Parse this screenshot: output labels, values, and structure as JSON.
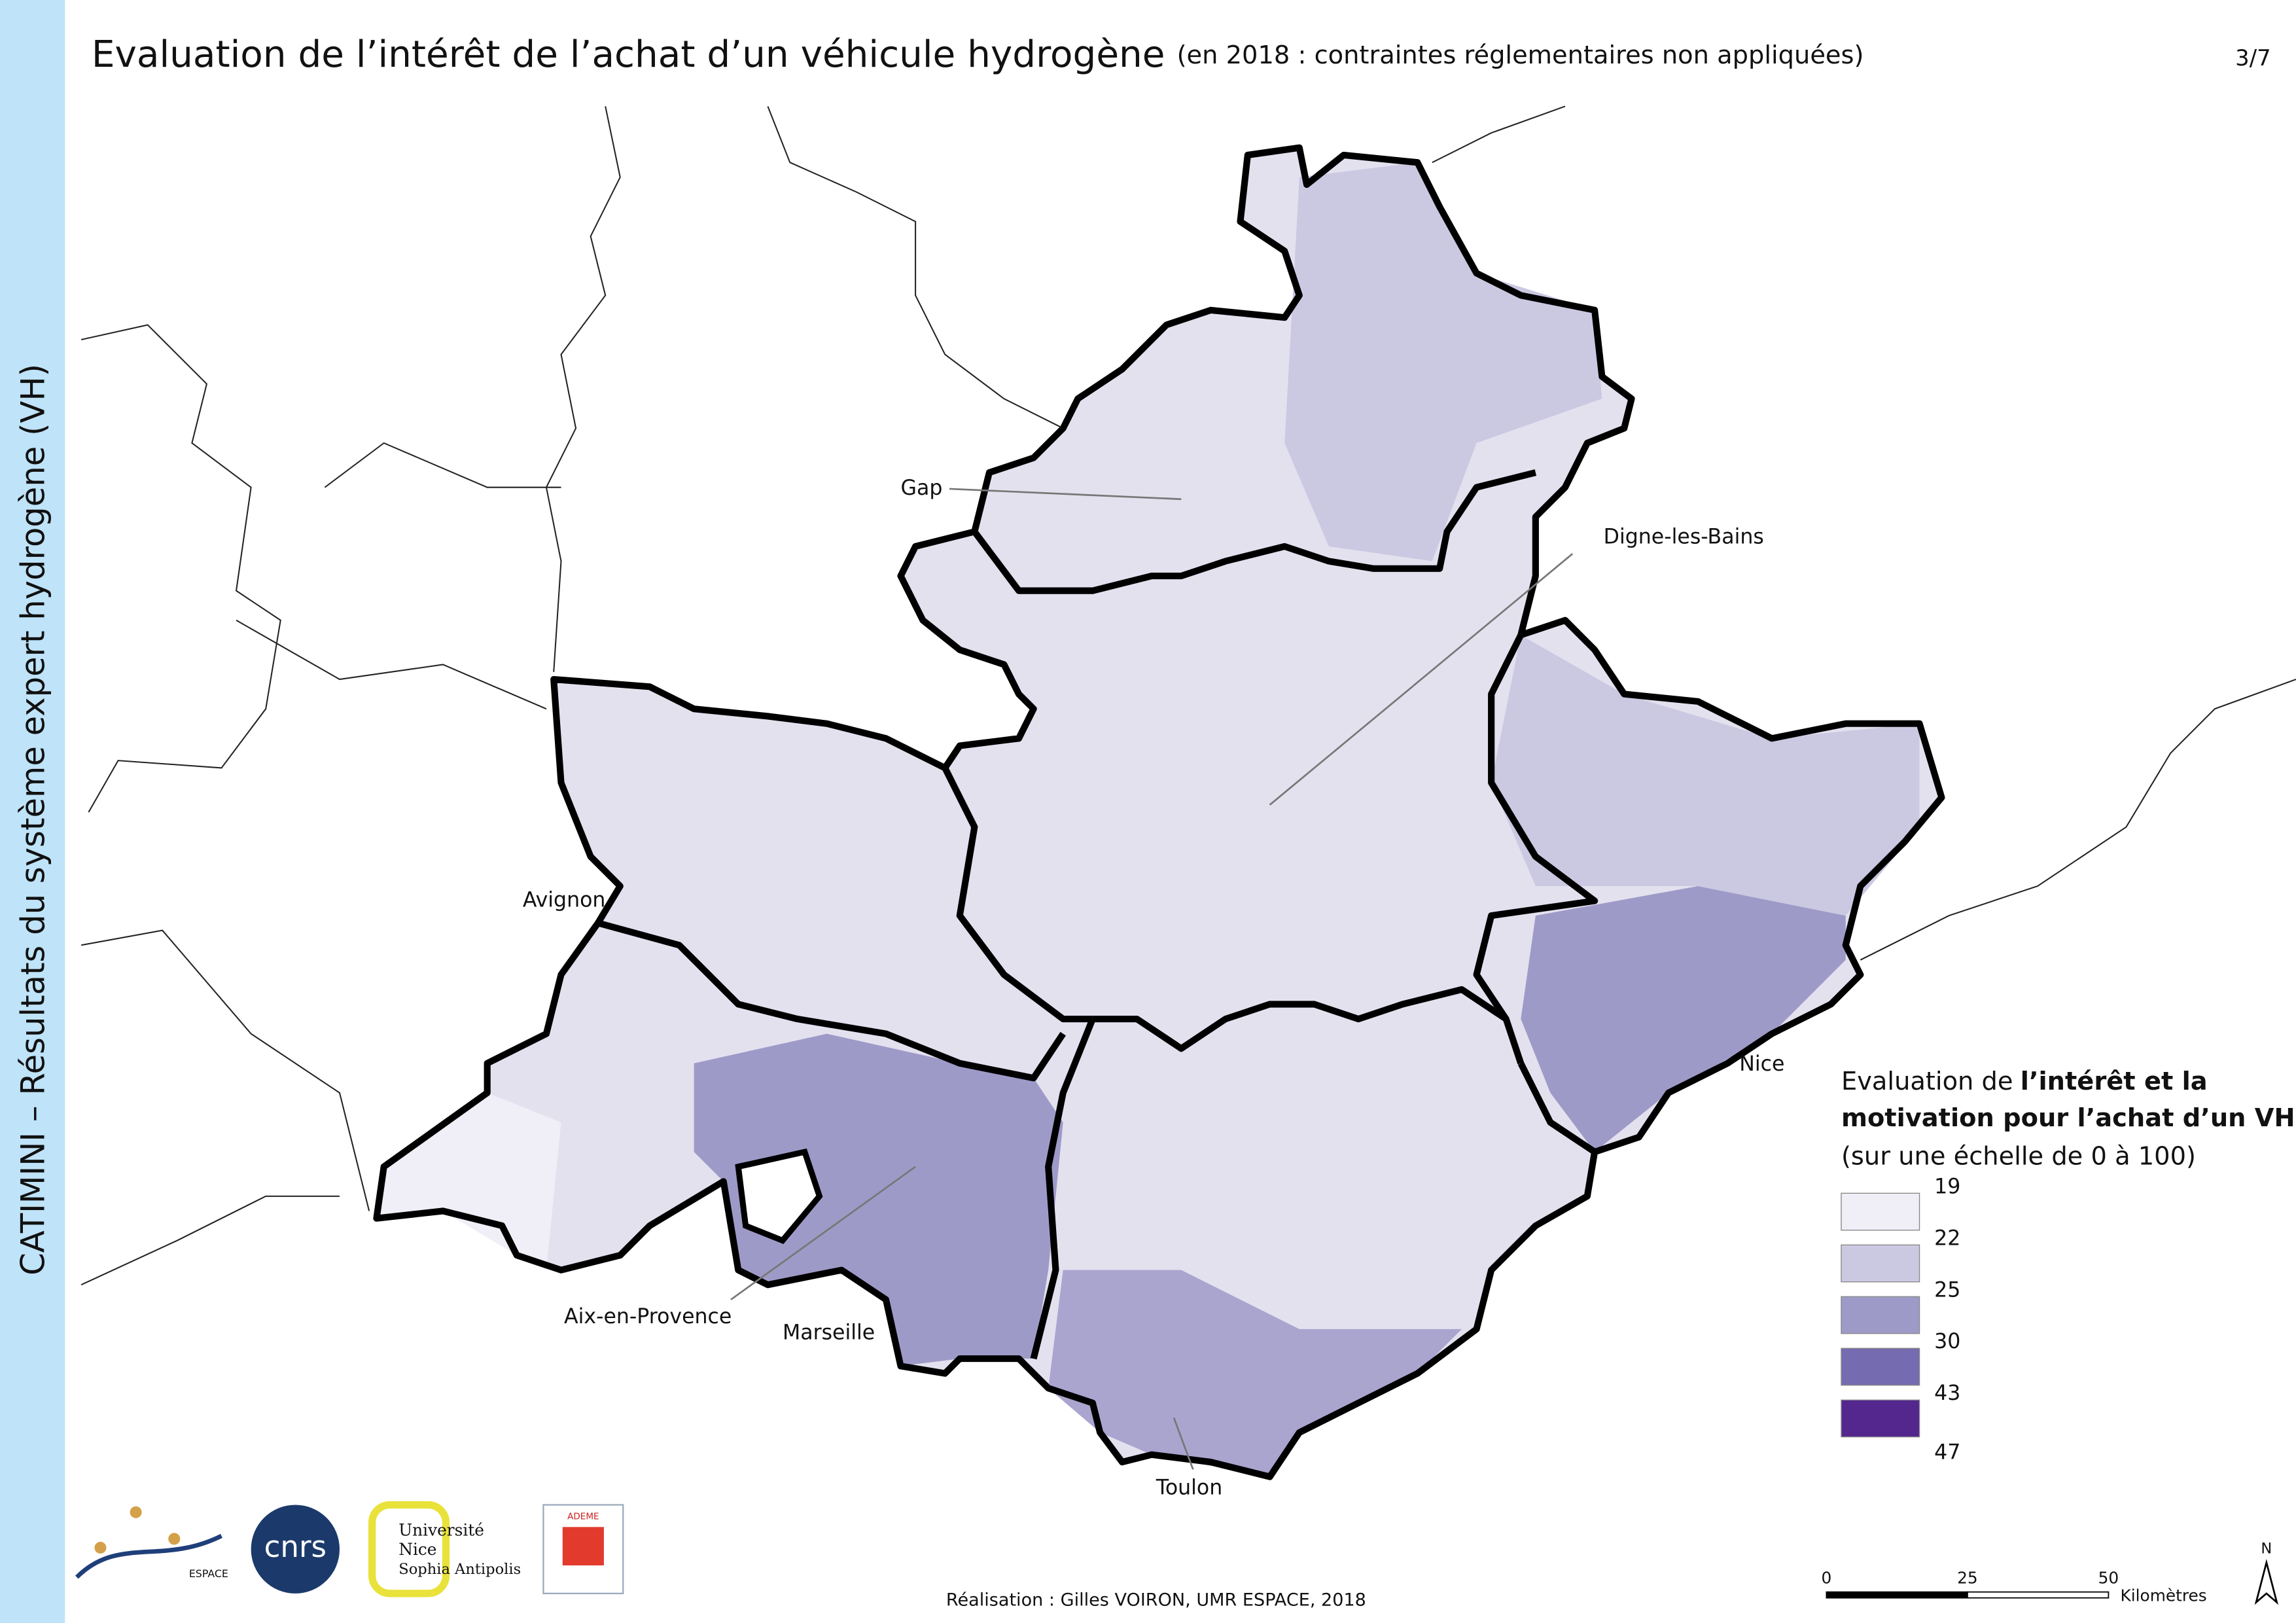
{
  "sidebar": "CATIMINI – Résultats du système expert hydrogène (VH)",
  "header": {
    "title": "Evaluation de l’intérêt de l’achat d’un véhicule hydrogène",
    "subtitle": "(en 2018 : contraintes réglementaires non appliquées)",
    "page": "3/7"
  },
  "cities": [
    "Gap",
    "Digne-les-Bains",
    "Avignon",
    "Aix-en-Provence",
    "Marseille",
    "Toulon",
    "Nice"
  ],
  "legend": {
    "title": [
      "Evaluation de",
      "l’intérêt et la",
      "motivation pour l’achat d’un VH",
      "(sur une échelle de 0 à 100)"
    ],
    "breaks": [
      19,
      22,
      25,
      30,
      43,
      47
    ],
    "colors": [
      "#f0eef6",
      "#cbc9e2",
      "#9e9ac8",
      "#756bb1",
      "#54278f"
    ]
  },
  "scale_bar": {
    "ticks": [
      0,
      25,
      50
    ],
    "unit": "Kilomètres"
  },
  "north": "N",
  "credit": "Réalisation : Gilles VOIRON, UMR ESPACE, 2018",
  "logos": {
    "espace": "ESPACE",
    "cnrs": "cnrs",
    "university": [
      "Université",
      "Nice",
      "Sophia Antipolis"
    ],
    "ademe": "ADEME"
  }
}
